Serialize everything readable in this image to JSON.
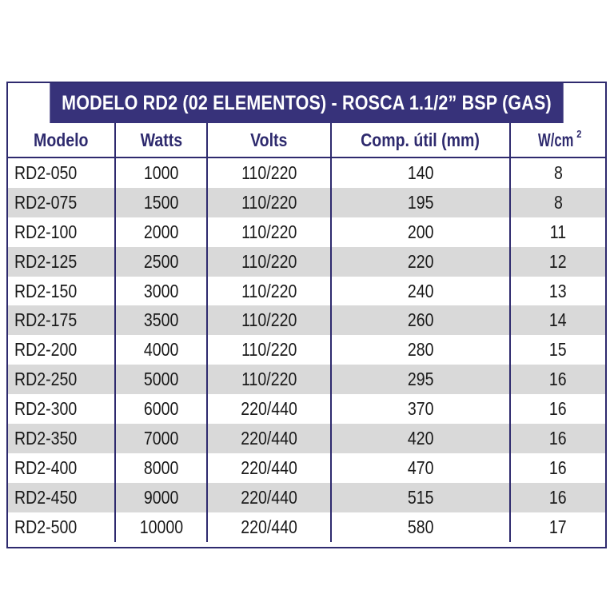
{
  "title": "MODELO RD2 (02 ELEMENTOS) - ROSCA 1.1/2” BSP (GAS)",
  "headers": {
    "modelo": "Modelo",
    "watts": "Watts",
    "volts": "Volts",
    "comp": "Comp. útil (mm)",
    "wcm": "W/cm",
    "wcm_sup": "2"
  },
  "rows": [
    {
      "modelo": "RD2-050",
      "watts": "1000",
      "volts": "110/220",
      "comp": "140",
      "wcm": "8"
    },
    {
      "modelo": "RD2-075",
      "watts": "1500",
      "volts": "110/220",
      "comp": "195",
      "wcm": "8"
    },
    {
      "modelo": "RD2-100",
      "watts": "2000",
      "volts": "110/220",
      "comp": "200",
      "wcm": "11"
    },
    {
      "modelo": "RD2-125",
      "watts": "2500",
      "volts": "110/220",
      "comp": "220",
      "wcm": "12"
    },
    {
      "modelo": "RD2-150",
      "watts": "3000",
      "volts": "110/220",
      "comp": "240",
      "wcm": "13"
    },
    {
      "modelo": "RD2-175",
      "watts": "3500",
      "volts": "110/220",
      "comp": "260",
      "wcm": "14"
    },
    {
      "modelo": "RD2-200",
      "watts": "4000",
      "volts": "110/220",
      "comp": "280",
      "wcm": "15"
    },
    {
      "modelo": "RD2-250",
      "watts": "5000",
      "volts": "110/220",
      "comp": "295",
      "wcm": "16"
    },
    {
      "modelo": "RD2-300",
      "watts": "6000",
      "volts": "220/440",
      "comp": "370",
      "wcm": "16"
    },
    {
      "modelo": "RD2-350",
      "watts": "7000",
      "volts": "220/440",
      "comp": "420",
      "wcm": "16"
    },
    {
      "modelo": "RD2-400",
      "watts": "8000",
      "volts": "220/440",
      "comp": "470",
      "wcm": "16"
    },
    {
      "modelo": "RD2-450",
      "watts": "9000",
      "volts": "220/440",
      "comp": "515",
      "wcm": "16"
    },
    {
      "modelo": "RD2-500",
      "watts": "10000",
      "volts": "220/440",
      "comp": "580",
      "wcm": "17"
    }
  ],
  "colors": {
    "header_bg": "#37327a",
    "header_text": "#2e2a6e",
    "stripe": "#d9d9d9"
  }
}
